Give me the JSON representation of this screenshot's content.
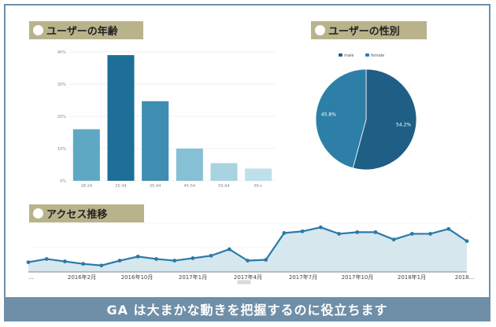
{
  "sections": {
    "age": {
      "title": "ユーザーの年齢"
    },
    "gender": {
      "title": "ユーザーの性別"
    },
    "traffic": {
      "title": "アクセス推移"
    }
  },
  "footer": {
    "caption": "GA は大まかな動きを把握するのに役立ちます"
  },
  "colors": {
    "header_bg": "#b9b38c",
    "frame": "#6f8fa8",
    "line": "#2a7aa8",
    "area": "#d6e7ee",
    "pie_male": "#1f5f85",
    "pie_female": "#2d7fa8"
  },
  "chart_data": [
    {
      "type": "bar",
      "categories": [
        "18-24",
        "25-34",
        "35-44",
        "45-54",
        "55-64",
        "65+"
      ],
      "values": [
        16,
        39,
        24.7,
        10,
        5.5,
        3.8
      ],
      "yticks": [
        "0%",
        "10%",
        "20%",
        "30%",
        "40%"
      ],
      "ylim": [
        0,
        40
      ],
      "bar_colors": [
        "#5fa8c3",
        "#1d6f97",
        "#3f8db0",
        "#85c0d4",
        "#a9d3e0",
        "#bfe0ea"
      ]
    },
    {
      "type": "pie",
      "series": [
        {
          "name": "male",
          "value": 54.2,
          "label": "54.2%"
        },
        {
          "name": "female",
          "value": 45.8,
          "label": "45.8%"
        }
      ]
    },
    {
      "type": "area",
      "x_ticks": [
        "2016年2月",
        "2016年10月",
        "2017年1月",
        "2017年4月",
        "2017年7月",
        "2017年10月",
        "2018年1月",
        "2018..."
      ],
      "x_start_label": "...",
      "values": [
        12,
        16,
        13,
        10,
        8,
        14,
        19,
        16,
        14,
        17,
        20,
        28,
        14,
        15,
        48,
        50,
        55,
        47,
        49,
        49,
        40,
        47,
        47,
        53,
        38
      ]
    }
  ]
}
